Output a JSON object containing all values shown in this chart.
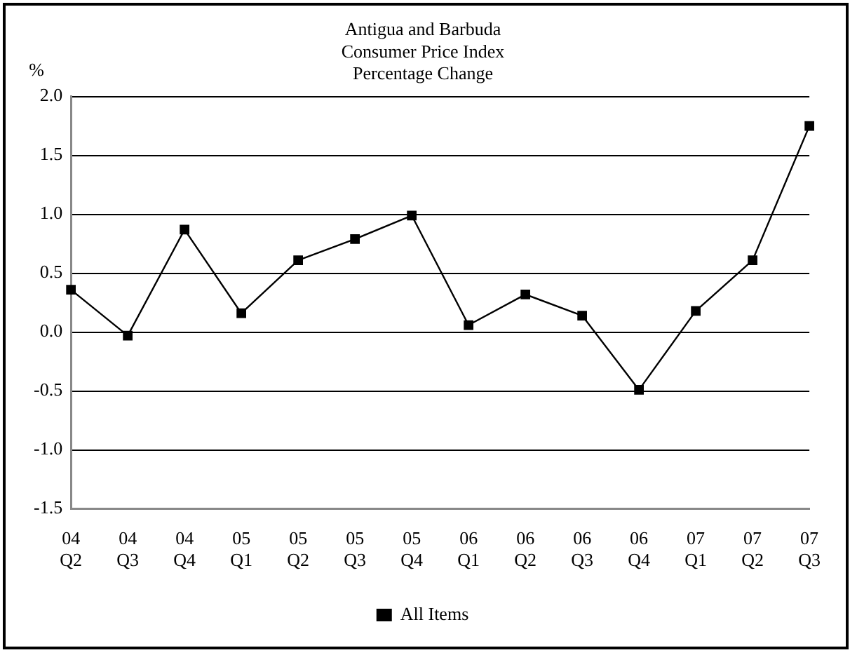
{
  "chart_data": {
    "type": "line",
    "title": "Antigua and Barbuda\nConsumer Price Index\nPercentage Change",
    "ylabel": "%",
    "categories": [
      "04\nQ2",
      "04\nQ3",
      "04\nQ4",
      "05\nQ1",
      "05\nQ2",
      "05\nQ3",
      "05\nQ4",
      "06\nQ1",
      "06\nQ2",
      "06\nQ3",
      "06\nQ4",
      "07\nQ1",
      "07\nQ2",
      "07\nQ3"
    ],
    "series": [
      {
        "name": "All Items",
        "color": "#000000",
        "values": [
          0.36,
          -0.03,
          0.87,
          0.16,
          0.61,
          0.79,
          0.99,
          0.06,
          0.32,
          0.14,
          -0.49,
          0.18,
          0.61,
          1.75
        ]
      }
    ],
    "ylim": [
      -1.5,
      2.0
    ],
    "yticks": [
      -1.5,
      {
        "value": -1,
        "label": "-1.0"
      },
      -0.5,
      {
        "value": 0,
        "label": "0.0"
      },
      0.5,
      {
        "value": 1,
        "label": "1.0"
      },
      1.5,
      {
        "value": 2,
        "label": "2.0"
      }
    ],
    "grid": "y",
    "legend": "bottom",
    "marker": "square",
    "line_style": "solid"
  }
}
